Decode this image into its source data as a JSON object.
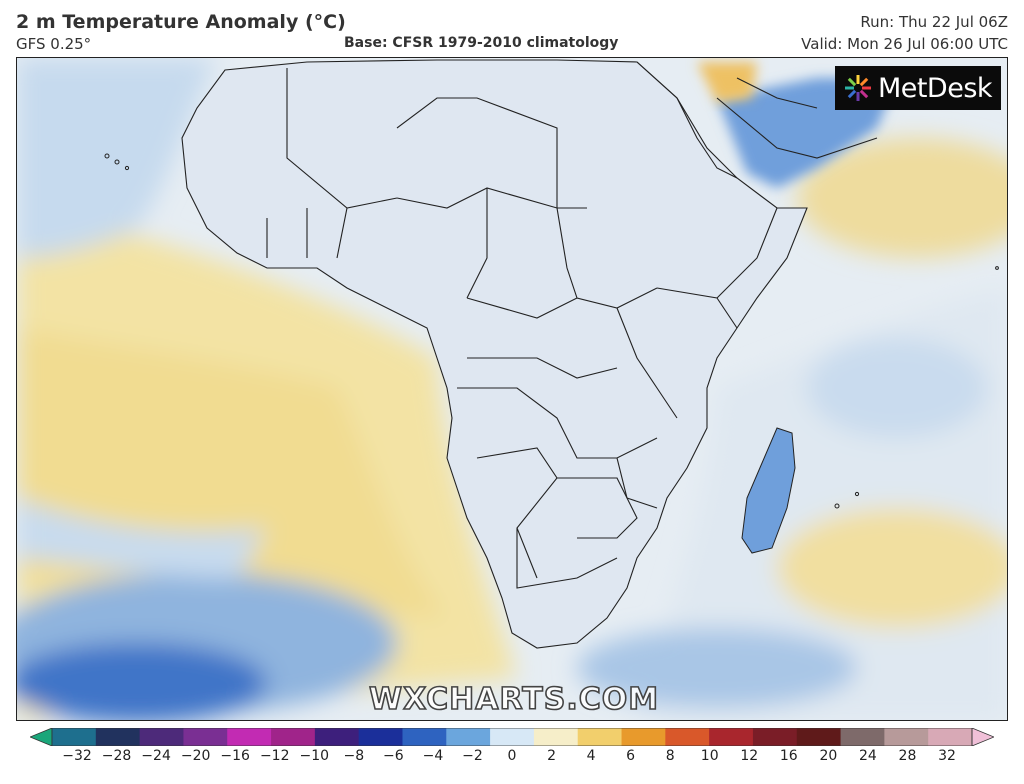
{
  "header": {
    "title": "2 m Temperature Anomaly (°C)",
    "model": "GFS 0.25°",
    "base": "Base: CFSR 1979-2010 climatology",
    "run": "Run: Thu 22 Jul 06Z",
    "valid": "Valid: Mon 26 Jul 06:00 UTC"
  },
  "logo": {
    "text": "MetDesk",
    "icon": "sunburst-logo-icon"
  },
  "watermark": "WXCHARTS.COM",
  "colorbar": {
    "unit": "°C",
    "ticks": [
      "−32",
      "−28",
      "−24",
      "−20",
      "−16",
      "−12",
      "−10",
      "−8",
      "−6",
      "−4",
      "−2",
      "0",
      "2",
      "4",
      "6",
      "8",
      "10",
      "12",
      "16",
      "20",
      "24",
      "28",
      "32"
    ],
    "colors": [
      "#1aa67a",
      "#1e6f8e",
      "#21325e",
      "#4d2a7a",
      "#7a2f93",
      "#c22bb3",
      "#a0248a",
      "#3d1f7c",
      "#1b2f9a",
      "#2e63c0",
      "#6ba6dd",
      "#d7e8f6",
      "#f6eec9",
      "#f2cf6c",
      "#e89a2c",
      "#d9582a",
      "#a9262d",
      "#7a1d27",
      "#5f1a1a",
      "#7e6a6a",
      "#b79a9a",
      "#d8a9b6",
      "#f0c0d8"
    ]
  },
  "map_colors": {
    "ocean_neutral": "#e8eef4",
    "warm_light": "#f2e3a6",
    "warm_mid": "#efc25e",
    "warm_strong": "#e07a2a",
    "cool_light": "#c9ddf0",
    "cool_mid": "#5f93d4",
    "cool_strong": "#2a4fb3",
    "border": "#222222"
  }
}
